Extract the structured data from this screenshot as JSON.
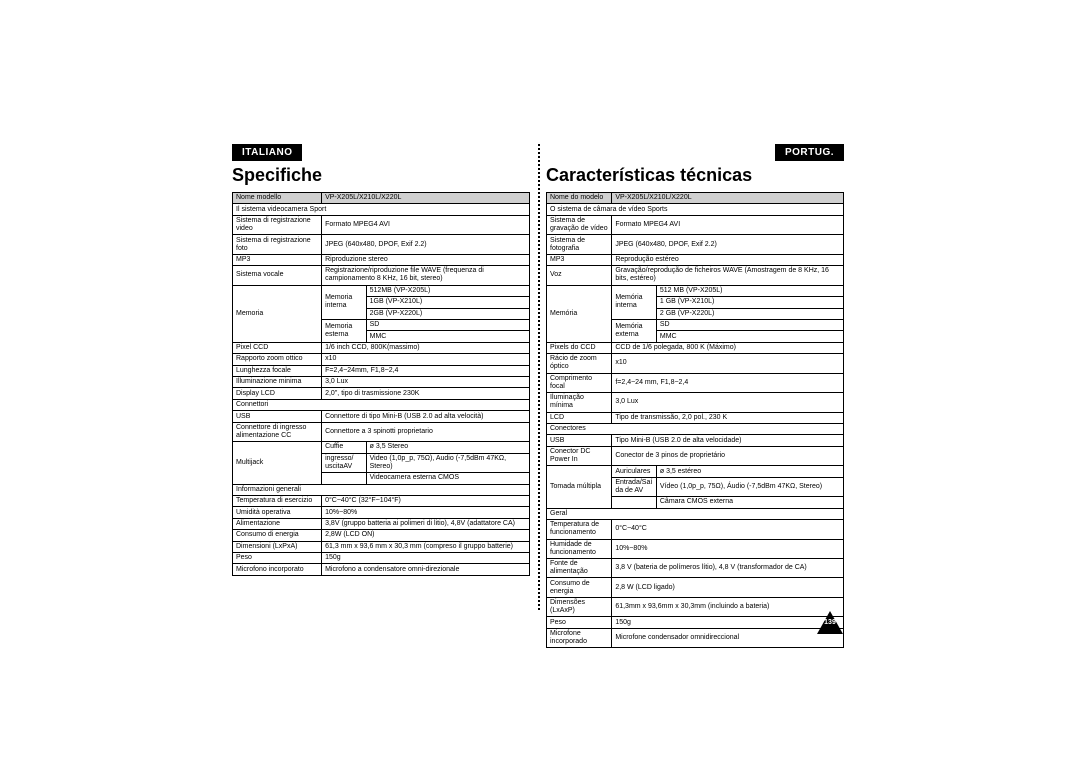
{
  "left": {
    "lang": "ITALIANO",
    "title": "Specifiche",
    "header": {
      "c1": "Nome modello",
      "c2": "VP-X205L/X210L/X220L"
    },
    "sec1": "Il sistema videocamera Sport",
    "rows1": [
      [
        "Sistema di registrazione video",
        "Formato MPEG4 AVI"
      ],
      [
        "Sistema di registrazione foto",
        "JPEG (640x480, DPOF, Exif 2.2)"
      ],
      [
        "MP3",
        "Riproduzione stereo"
      ],
      [
        "Sistema vocale",
        "Registrazione/riproduzione file WAVE (frequenza di campionamento 8 KHz, 16 bit, stereo)"
      ]
    ],
    "mem": {
      "label": "Memoria",
      "int": "Memoria interna",
      "ext": "Memoria esterna",
      "v": [
        "512MB (VP-X205L)",
        "1GB (VP-X210L)",
        "2GB (VP-X220L)",
        "SD",
        "MMC"
      ]
    },
    "rows1b": [
      [
        "Pixel CCD",
        "1/6 inch CCD, 800K(massimo)"
      ],
      [
        "Rapporto zoom ottico",
        "x10"
      ],
      [
        "Lunghezza focale",
        "F=2,4~24mm, F1,8~2,4"
      ],
      [
        "Illuminazione minima",
        "3,0 Lux"
      ],
      [
        "Display LCD",
        "2,0\", tipo di trasmissione 230K"
      ]
    ],
    "sec2": "Connettori",
    "rows2": [
      [
        "USB",
        "Connettore di tipo Mini-B (USB 2.0 ad alta velocità)"
      ],
      [
        "Connettore di ingresso alimentazione CC",
        "Connettore a 3 spinotti proprietario"
      ]
    ],
    "multi": {
      "label": "Multijack",
      "r": [
        [
          "Cuffie",
          "ø 3,5 Stereo"
        ],
        [
          "ingresso/ uscitaAV",
          "Video (1,0p_p, 75Ω), Audio (-7,5dBm 47KΩ, Stereo)"
        ],
        [
          "",
          "Videocamera esterna CMOS"
        ]
      ]
    },
    "sec3": "Informazioni generali",
    "rows3": [
      [
        "Temperatura di esercizio",
        "0°C~40°C (32°F~104°F)"
      ],
      [
        "Umidità operativa",
        "10%~80%"
      ],
      [
        "Alimentazione",
        "3,8V (gruppo batteria ai polimeri di litio), 4,8V (adattatore CA)"
      ],
      [
        "Consumo di energia",
        "2,8W (LCD ON)"
      ],
      [
        "Dimensioni (LxPxA)",
        "61,3 mm x 93,6 mm x 30,3 mm   (compreso il gruppo batterie)"
      ],
      [
        "Peso",
        "150g"
      ],
      [
        "Microfono incorporato",
        "Microfono a condensatore omni-direzionale"
      ]
    ]
  },
  "right": {
    "lang": "PORTUG.",
    "title": "Características técnicas",
    "header": {
      "c1": "Nome do modelo",
      "c2": "VP-X205L/X210L/X220L"
    },
    "sec1": "O sistema de câmara de vídeo Sports",
    "rows1": [
      [
        "Sistema de gravação de vídeo",
        "Formato MPEG4 AVI"
      ],
      [
        "Sistema de fotografia",
        "JPEG (640x480, DPOF, Exif 2.2)"
      ],
      [
        "MP3",
        "Reprodução estéreo"
      ],
      [
        "Voz",
        "Gravação/reprodução de ficheiros WAVE (Amostragem de 8 KHz, 16 bits, estéreo)"
      ]
    ],
    "mem": {
      "label": "Memória",
      "int": "Memória interna",
      "ext": "Memória externa",
      "v": [
        "512 MB (VP-X205L)",
        "1 GB (VP-X210L)",
        "2 GB (VP-X220L)",
        "SD",
        "MMC"
      ]
    },
    "rows1b": [
      [
        "Pixels do CCD",
        "CCD de 1/6 polegada, 800 K (Máximo)"
      ],
      [
        "Rácio de zoom óptico",
        "x10"
      ],
      [
        "Comprimento focal",
        "f=2,4~24 mm, F1,8~2,4"
      ],
      [
        "Iluminação mínima",
        "3,0 Lux"
      ],
      [
        "LCD",
        "Tipo de transmissão, 2,0 pol., 230 K"
      ]
    ],
    "sec2": "Conectores",
    "rows2": [
      [
        "USB",
        "Tipo Mini-B (USB 2.0 de alta velocidade)"
      ],
      [
        "Conector DC Power In",
        "Conector de 3 pinos de proprietário"
      ]
    ],
    "multi": {
      "label": "Tomada múltipla",
      "r": [
        [
          "Auriculares",
          "ø 3,5 estéreo"
        ],
        [
          "Entrada/Saída de AV",
          "Vídeo (1,0p_p, 75Ω), Áudio (-7,5dBm 47KΩ, Stereo)"
        ],
        [
          "",
          "Câmara CMOS externa"
        ]
      ]
    },
    "sec3": "Geral",
    "rows3": [
      [
        "Temperatura de funcionamento",
        "0°C~40°C"
      ],
      [
        "Humidade de funcionamento",
        "10%~80%"
      ],
      [
        "Fonte de alimentação",
        "3,8 V (bateria de polímeros lítio), 4,8 V (transformador de CA)"
      ],
      [
        "Consumo de energia",
        "2,8 W (LCD ligado)"
      ],
      [
        "Dimensões (LxAxP)",
        "61,3mm x 93,6mm x 30,3mm   (incluindo a bateria)"
      ],
      [
        "Peso",
        "150g"
      ],
      [
        "Microfone incorporado",
        "Microfone condensador omnidireccional"
      ]
    ]
  },
  "pagenum": "139"
}
